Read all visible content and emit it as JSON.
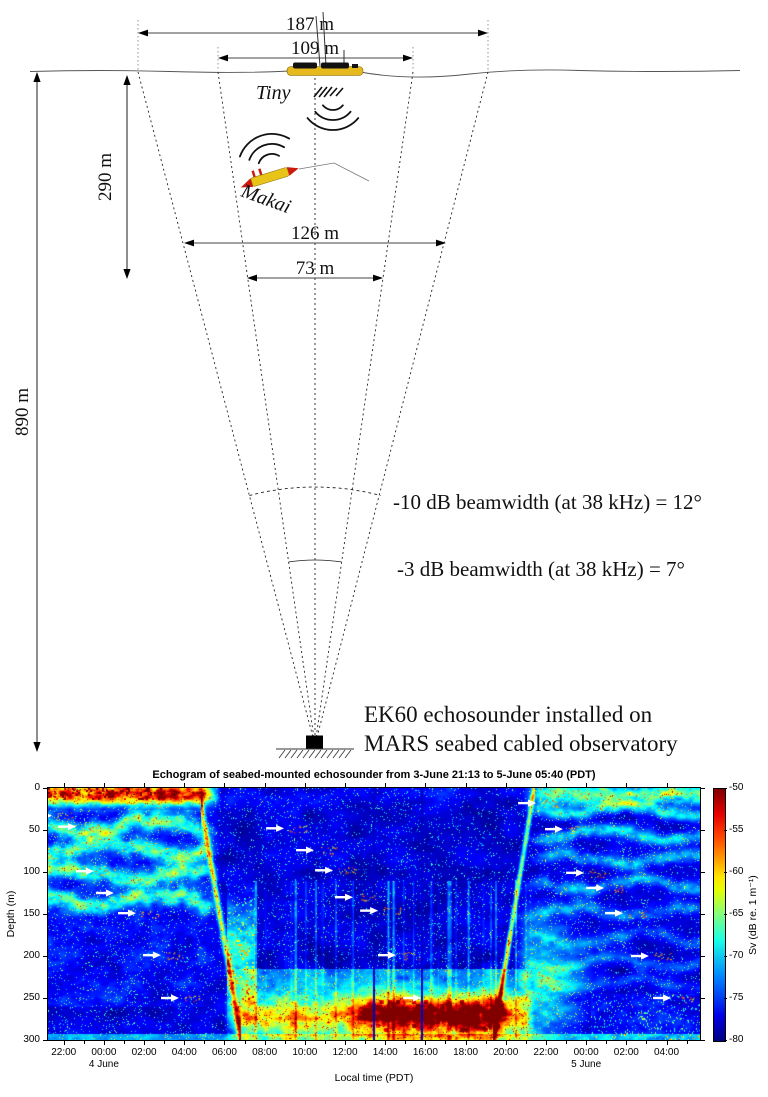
{
  "diagram": {
    "dims": {
      "d187": "187 m",
      "d109": "109 m",
      "d290": "290 m",
      "d126": "126 m",
      "d73": "73 m",
      "d890": "890 m"
    },
    "vessel_label": "Tiny",
    "glider_label": "Makai",
    "beamwidths": {
      "b10": "-10 dB beamwidth (at 38 kHz) = 12°",
      "b3": "-3 dB beamwidth (at 38 kHz) = 7°"
    },
    "caption": {
      "line1": "EK60 echosounder installed on",
      "line2": "MARS seabed cabled observatory"
    }
  },
  "chart_data": {
    "type": "heatmap",
    "title": "Echogram of seabed-mounted echosounder from 3-June 21:13 to 5-June 05:40 (PDT)",
    "xlabel": "Local time (PDT)",
    "ylabel": "Depth (m)",
    "x_start": "3-June 21:13",
    "x_end": "5-June 05:40",
    "duration_hours": 32.45,
    "ylim": [
      0,
      300
    ],
    "y_ticks": [
      0,
      50,
      100,
      150,
      200,
      250,
      300
    ],
    "x_ticks": [
      {
        "label": "22:00",
        "h": 0.783
      },
      {
        "label": "00:00",
        "h": 2.783
      },
      {
        "label": "02:00",
        "h": 4.783
      },
      {
        "label": "04:00",
        "h": 6.783
      },
      {
        "label": "06:00",
        "h": 8.783
      },
      {
        "label": "08:00",
        "h": 10.783
      },
      {
        "label": "10:00",
        "h": 12.783
      },
      {
        "label": "12:00",
        "h": 14.783
      },
      {
        "label": "14:00",
        "h": 16.783
      },
      {
        "label": "16:00",
        "h": 18.783
      },
      {
        "label": "18:00",
        "h": 20.783
      },
      {
        "label": "20:00",
        "h": 22.783
      },
      {
        "label": "22:00",
        "h": 24.783
      },
      {
        "label": "00:00",
        "h": 26.783
      },
      {
        "label": "02:00",
        "h": 28.783
      },
      {
        "label": "04:00",
        "h": 30.783
      }
    ],
    "date_labels": [
      {
        "label": "4 June",
        "h": 2.783
      },
      {
        "label": "5 June",
        "h": 26.783
      }
    ],
    "colorbar": {
      "label": "Sv (dB re. 1 m⁻¹)",
      "max": -50,
      "min": -80,
      "ticks": [
        -50,
        -55,
        -60,
        -65,
        -70,
        -75,
        -80
      ],
      "colormap": "jet"
    },
    "features": {
      "surface_night_band": {
        "t": [
          0,
          8.6
        ],
        "depth_center": 7,
        "depth_sigma": 9,
        "gain": [
          13,
          20
        ],
        "red_patch_until_h": 5.8
      },
      "west_layers": {
        "t": [
          0,
          8.6
        ],
        "centers": [
          45,
          72,
          102,
          133
        ],
        "gain": [
          5,
          9
        ]
      },
      "dawn_descent": {
        "t": [
          7.6,
          9.6
        ],
        "path": [
          [
            7.6,
            22
          ],
          [
            9.3,
            258
          ]
        ],
        "gain": [
          9,
          11
        ]
      },
      "post_descent_swarm": {
        "t": [
          8.9,
          10.3
        ],
        "depth_center": 200,
        "gain": [
          6,
          10
        ]
      },
      "deep_day_layer": {
        "t": [
          8.7,
          24.2
        ],
        "center": 271,
        "sigma": 16,
        "gain": [
          7,
          9
        ],
        "hot_t": [
          14.6,
          23.2
        ],
        "hot_gain": [
          9,
          8
        ]
      },
      "dusk_ascent": {
        "t": [
          22.1,
          24.2
        ],
        "path": [
          [
            22.15,
            296
          ],
          [
            24.05,
            18
          ]
        ],
        "gain": [
          9,
          9
        ]
      },
      "east_layers": {
        "t": [
          23.6,
          32.45
        ],
        "centers": [
          26,
          55,
          85,
          115,
          147,
          178,
          207,
          232
        ],
        "gain": [
          4,
          8
        ]
      },
      "dropout_columns_h": [
        16.2,
        18.55
      ]
    },
    "annotations": {
      "arrow_meaning": "white right-pointing arrows marking scatterer traces",
      "arrows": [
        [
          0.15,
          33
        ],
        [
          1.34,
          46
        ],
        [
          2.24,
          99
        ],
        [
          3.23,
          125
        ],
        [
          4.33,
          149
        ],
        [
          5.57,
          199
        ],
        [
          6.47,
          250
        ],
        [
          11.7,
          48
        ],
        [
          13.19,
          74
        ],
        [
          14.14,
          98
        ],
        [
          15.13,
          130
        ],
        [
          16.38,
          146
        ],
        [
          17.27,
          199
        ],
        [
          18.52,
          250
        ],
        [
          24.24,
          18
        ],
        [
          25.58,
          49
        ],
        [
          26.63,
          101
        ],
        [
          27.63,
          119
        ],
        [
          28.57,
          149
        ],
        [
          29.86,
          200
        ],
        [
          30.96,
          250
        ]
      ]
    }
  }
}
